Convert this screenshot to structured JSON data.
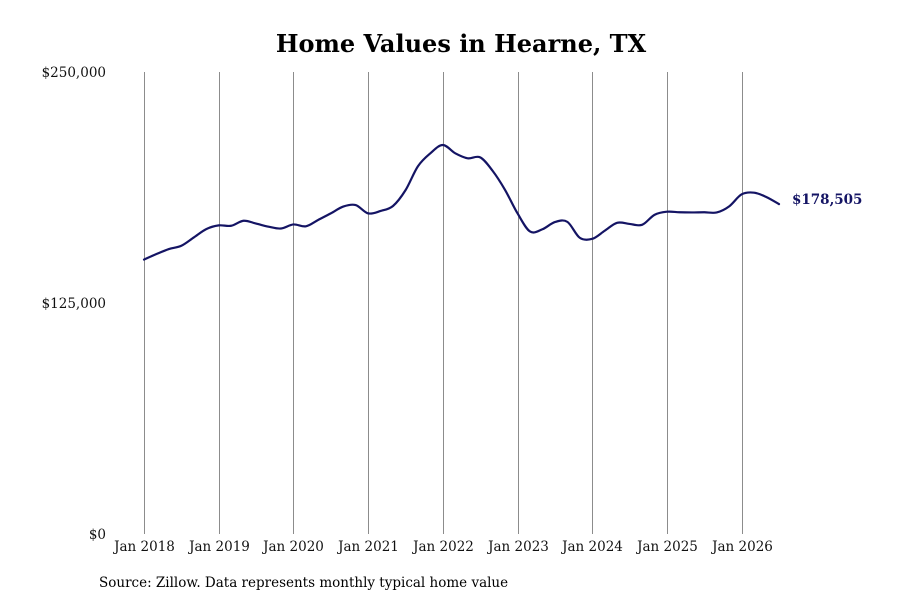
{
  "chart_data": {
    "type": "line",
    "title": "Home Values in Hearne, TX",
    "xlabel": "",
    "ylabel": "",
    "ylim": [
      0,
      250000
    ],
    "yticks": [
      {
        "value": 0,
        "label": "$0"
      },
      {
        "value": 125000,
        "label": "$125,000"
      },
      {
        "value": 250000,
        "label": "$250,000"
      }
    ],
    "xticks": [
      {
        "value": 2018.0,
        "label": "Jan 2018"
      },
      {
        "value": 2019.0,
        "label": "Jan 2019"
      },
      {
        "value": 2020.0,
        "label": "Jan 2020"
      },
      {
        "value": 2021.0,
        "label": "Jan 2021"
      },
      {
        "value": 2022.0,
        "label": "Jan 2022"
      },
      {
        "value": 2023.0,
        "label": "Jan 2023"
      },
      {
        "value": 2024.0,
        "label": "Jan 2024"
      },
      {
        "value": 2025.0,
        "label": "Jan 2025"
      },
      {
        "value": 2026.0,
        "label": "Jan 2026"
      }
    ],
    "xlim": [
      2018.0,
      2026.5
    ],
    "grid": "vertical",
    "colors": {
      "line": "#141464",
      "grid": "#8c8c8c"
    },
    "series": [
      {
        "end_label": "$178,505",
        "points": [
          [
            2018.0,
            148500
          ],
          [
            2018.167,
            151500
          ],
          [
            2018.333,
            154200
          ],
          [
            2018.5,
            156000
          ],
          [
            2018.667,
            160500
          ],
          [
            2018.833,
            165000
          ],
          [
            2019.0,
            167000
          ],
          [
            2019.167,
            166800
          ],
          [
            2019.333,
            169500
          ],
          [
            2019.5,
            168000
          ],
          [
            2019.667,
            166300
          ],
          [
            2019.833,
            165300
          ],
          [
            2020.0,
            167500
          ],
          [
            2020.167,
            166500
          ],
          [
            2020.333,
            170000
          ],
          [
            2020.5,
            173500
          ],
          [
            2020.667,
            177200
          ],
          [
            2020.833,
            178000
          ],
          [
            2021.0,
            173500
          ],
          [
            2021.167,
            174800
          ],
          [
            2021.333,
            177500
          ],
          [
            2021.5,
            186000
          ],
          [
            2021.667,
            199000
          ],
          [
            2021.833,
            206000
          ],
          [
            2022.0,
            210500
          ],
          [
            2022.167,
            206000
          ],
          [
            2022.333,
            203300
          ],
          [
            2022.5,
            203800
          ],
          [
            2022.667,
            196500
          ],
          [
            2022.833,
            186200
          ],
          [
            2023.0,
            173500
          ],
          [
            2023.167,
            163700
          ],
          [
            2023.333,
            164900
          ],
          [
            2023.5,
            168800
          ],
          [
            2023.667,
            168900
          ],
          [
            2023.833,
            160300
          ],
          [
            2024.0,
            159700
          ],
          [
            2024.167,
            164100
          ],
          [
            2024.333,
            168400
          ],
          [
            2024.5,
            167800
          ],
          [
            2024.667,
            167300
          ],
          [
            2024.833,
            172700
          ],
          [
            2025.0,
            174400
          ],
          [
            2025.167,
            174100
          ],
          [
            2025.333,
            174000
          ],
          [
            2025.5,
            174100
          ],
          [
            2025.667,
            174000
          ],
          [
            2025.833,
            177300
          ],
          [
            2026.0,
            183800
          ],
          [
            2026.167,
            184700
          ],
          [
            2026.333,
            182300
          ],
          [
            2026.5,
            178505
          ]
        ]
      }
    ]
  },
  "footer": {
    "source": "Source: Zillow. Data represents monthly typical home value"
  }
}
